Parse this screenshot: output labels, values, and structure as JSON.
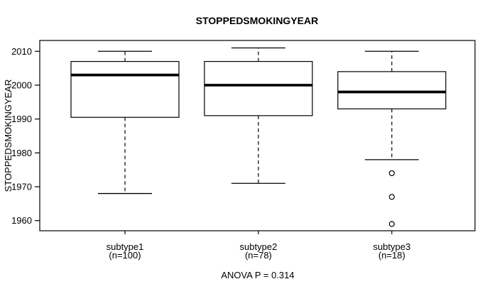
{
  "chart_data": {
    "type": "boxplot",
    "title": "STOPPEDSMOKINGYEAR",
    "ylabel": "STOPPEDSMOKINGYEAR",
    "footer": "ANOVA P = 0.314",
    "grid": false,
    "legend": null,
    "ylim": [
      1957,
      2013.2
    ],
    "y_ticks": [
      1960,
      1970,
      1980,
      1990,
      2000,
      2010
    ],
    "groups": [
      {
        "label": "subtype1",
        "sublabel": "(n=100)",
        "n": 100,
        "whisker_low": 1968,
        "q1": 1990.5,
        "median": 2003,
        "q3": 2007,
        "whisker_high": 2010,
        "outliers": []
      },
      {
        "label": "subtype2",
        "sublabel": "(n=78)",
        "n": 78,
        "whisker_low": 1971,
        "q1": 1991,
        "median": 2000,
        "q3": 2007,
        "whisker_high": 2011,
        "outliers": []
      },
      {
        "label": "subtype3",
        "sublabel": "(n=18)",
        "n": 18,
        "whisker_low": 1978,
        "q1": 1993,
        "median": 1998,
        "q3": 2004,
        "whisker_high": 2010,
        "outliers": [
          1974,
          1967,
          1959
        ]
      }
    ],
    "colors": {
      "line": "#000000",
      "box_fill": "#ffffff",
      "background": "#ffffff"
    }
  }
}
